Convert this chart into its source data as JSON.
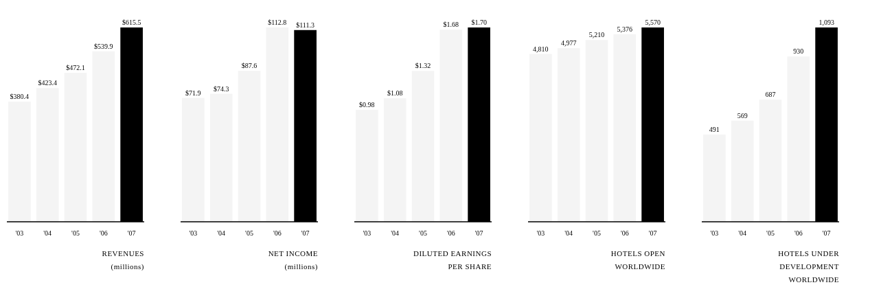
{
  "chart_data": [
    {
      "type": "bar",
      "title": "REVENUES\n(millions)",
      "categories": [
        "'03",
        "'04",
        "'05",
        "'06",
        "'07"
      ],
      "values": [
        380.4,
        423.4,
        472.1,
        539.9,
        615.5
      ],
      "value_labels": [
        "$380.4",
        "$423.4",
        "$472.1",
        "$539.9",
        "$615.5"
      ],
      "colors": [
        "#f4f4f4",
        "#f4f4f4",
        "#f4f4f4",
        "#f4f4f4",
        "#000000"
      ]
    },
    {
      "type": "bar",
      "title": "NET INCOME\n(millions)",
      "categories": [
        "'03",
        "'04",
        "'05",
        "'06",
        "'07"
      ],
      "values": [
        71.9,
        74.3,
        87.6,
        112.8,
        111.3
      ],
      "value_labels": [
        "$71.9",
        "$74.3",
        "$87.6",
        "$112.8",
        "$111.3"
      ],
      "colors": [
        "#f4f4f4",
        "#f4f4f4",
        "#f4f4f4",
        "#f4f4f4",
        "#000000"
      ]
    },
    {
      "type": "bar",
      "title": "DILUTED EARNINGS\nPER SHARE",
      "categories": [
        "'03",
        "'04",
        "'05",
        "'06",
        "'07"
      ],
      "values": [
        0.98,
        1.08,
        1.32,
        1.68,
        1.7
      ],
      "value_labels": [
        "$0.98",
        "$1.08",
        "$1.32",
        "$1.68",
        "$1.70"
      ],
      "colors": [
        "#f4f4f4",
        "#f4f4f4",
        "#f4f4f4",
        "#f4f4f4",
        "#000000"
      ]
    },
    {
      "type": "bar",
      "title": "HOTELS OPEN\nWORLDWIDE",
      "categories": [
        "'03",
        "'04",
        "'05",
        "'06",
        "'07"
      ],
      "values": [
        4810,
        4977,
        5210,
        5376,
        5570
      ],
      "value_labels": [
        "4,810",
        "4,977",
        "5,210",
        "5,376",
        "5,570"
      ],
      "colors": [
        "#f4f4f4",
        "#f4f4f4",
        "#f4f4f4",
        "#f4f4f4",
        "#000000"
      ]
    },
    {
      "type": "bar",
      "title": "HOTELS UNDER\nDEVELOPMENT\nWORLDWIDE",
      "categories": [
        "'03",
        "'04",
        "'05",
        "'06",
        "'07"
      ],
      "values": [
        491,
        569,
        687,
        930,
        1093
      ],
      "value_labels": [
        "491",
        "569",
        "687",
        "930",
        "1,093"
      ],
      "colors": [
        "#f4f4f4",
        "#f4f4f4",
        "#f4f4f4",
        "#f4f4f4",
        "#000000"
      ]
    }
  ]
}
